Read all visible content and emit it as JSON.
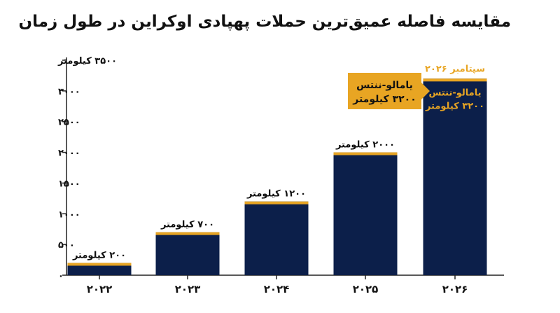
{
  "title": "مقایسه فاصله عمیق‌ترین حملات پهپادی اوکراین در طول زمان",
  "colors": {
    "bar": "#0c1f4a",
    "accent": "#e8a523",
    "axis": "#222222",
    "tick_text": "#111111"
  },
  "chart_data": {
    "type": "bar",
    "categories": [
      "۲۰۲۲",
      "۲۰۲۳",
      "۲۰۲۴",
      "۲۰۲۵",
      "۲۰۲۶"
    ],
    "values": [
      200,
      700,
      1200,
      2000,
      3200
    ],
    "data_labels": [
      "۲۰۰ کیلومتر",
      "۷۰۰ کیلومتر",
      "۱۲۰۰ کیلومتر",
      "۲۰۰۰ کیلومتر",
      "یامالو-ننتس ۳۲۰۰ کیلومتر"
    ],
    "ylim": [
      0,
      3500
    ],
    "yticks": [
      {
        "value": 0,
        "label": "۰"
      },
      {
        "value": 500,
        "label": "۵۰۰"
      },
      {
        "value": 1000,
        "label": "۱۰۰۰"
      },
      {
        "value": 1500,
        "label": "۱۵۰۰"
      },
      {
        "value": 2000,
        "label": "۲۰۰۰"
      },
      {
        "value": 2500,
        "label": "۲۵۰۰"
      },
      {
        "value": 3000,
        "label": "۳۰۰۰"
      },
      {
        "value": 3500,
        "label": "۳۵۰۰ کیلومتر"
      }
    ],
    "last_bar_inside_label": [
      "یامالو-ننتس",
      "۳۲۰۰ کیلومتر"
    ],
    "last_bar_date": "سپتامبر ۲۰۲۶",
    "callout": {
      "lines": [
        "یامالو-ننتس",
        "۳۲۰۰ کیلومتر"
      ]
    },
    "grid": false
  }
}
